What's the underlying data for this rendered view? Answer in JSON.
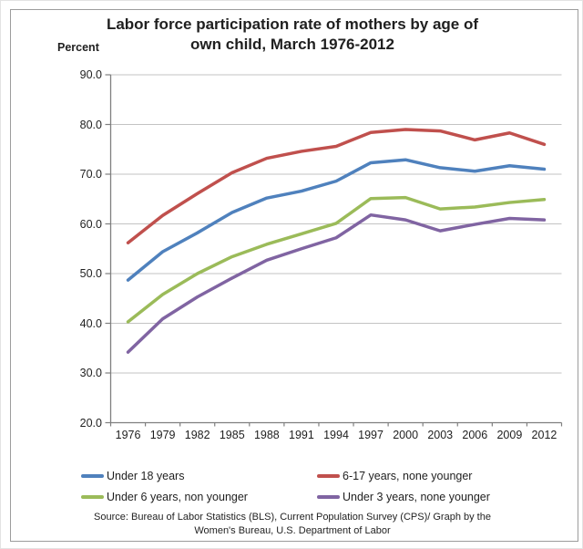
{
  "chart_data": {
    "type": "line",
    "title_lines": [
      "Labor force participation rate of mothers by age of",
      "own child, March 1976-2012"
    ],
    "y_axis_label": "Percent",
    "categories": [
      "1976",
      "1979",
      "1982",
      "1985",
      "1988",
      "1991",
      "1994",
      "1997",
      "2000",
      "2003",
      "2006",
      "2009",
      "2012"
    ],
    "y_tick_labels": [
      "90.0",
      "80.0",
      "70.0",
      "60.0",
      "50.0",
      "40.0",
      "30.0",
      "20.0"
    ],
    "ylim": [
      20,
      90
    ],
    "y_step": 10,
    "grid": "horizontal",
    "legend_position": "bottom",
    "series": [
      {
        "name": "Under 18 years",
        "color": "#4F81BD",
        "values": [
          48.7,
          54.4,
          58.2,
          62.3,
          65.2,
          66.6,
          68.6,
          72.3,
          72.9,
          71.3,
          70.6,
          71.7,
          71.0
        ]
      },
      {
        "name": "6-17 years, none younger",
        "color": "#C0504D",
        "values": [
          56.2,
          61.7,
          66.1,
          70.3,
          73.2,
          74.6,
          75.6,
          78.4,
          79.0,
          78.7,
          76.9,
          78.3,
          76.0
        ]
      },
      {
        "name": "Under 6 years, non younger",
        "color": "#9BBB59",
        "values": [
          40.3,
          45.8,
          50.0,
          53.4,
          55.9,
          58.0,
          60.1,
          65.1,
          65.3,
          63.0,
          63.4,
          64.3,
          64.9
        ]
      },
      {
        "name": "Under 3 years, none younger",
        "color": "#8064A2",
        "values": [
          34.2,
          40.9,
          45.3,
          49.1,
          52.7,
          55.0,
          57.2,
          61.8,
          60.8,
          58.6,
          59.9,
          61.1,
          60.8
        ]
      }
    ],
    "source_lines": [
      "Source: Bureau of Labor Statistics (BLS), Current Population Survey (CPS)/ Graph by the",
      "Women's Bureau, U.S. Department of Labor"
    ]
  },
  "colors": {
    "gridline": "#c3c3c3",
    "axis": "#7f7f7f",
    "frame_border": "#9c9c9c",
    "text": "#1f1f1f"
  }
}
